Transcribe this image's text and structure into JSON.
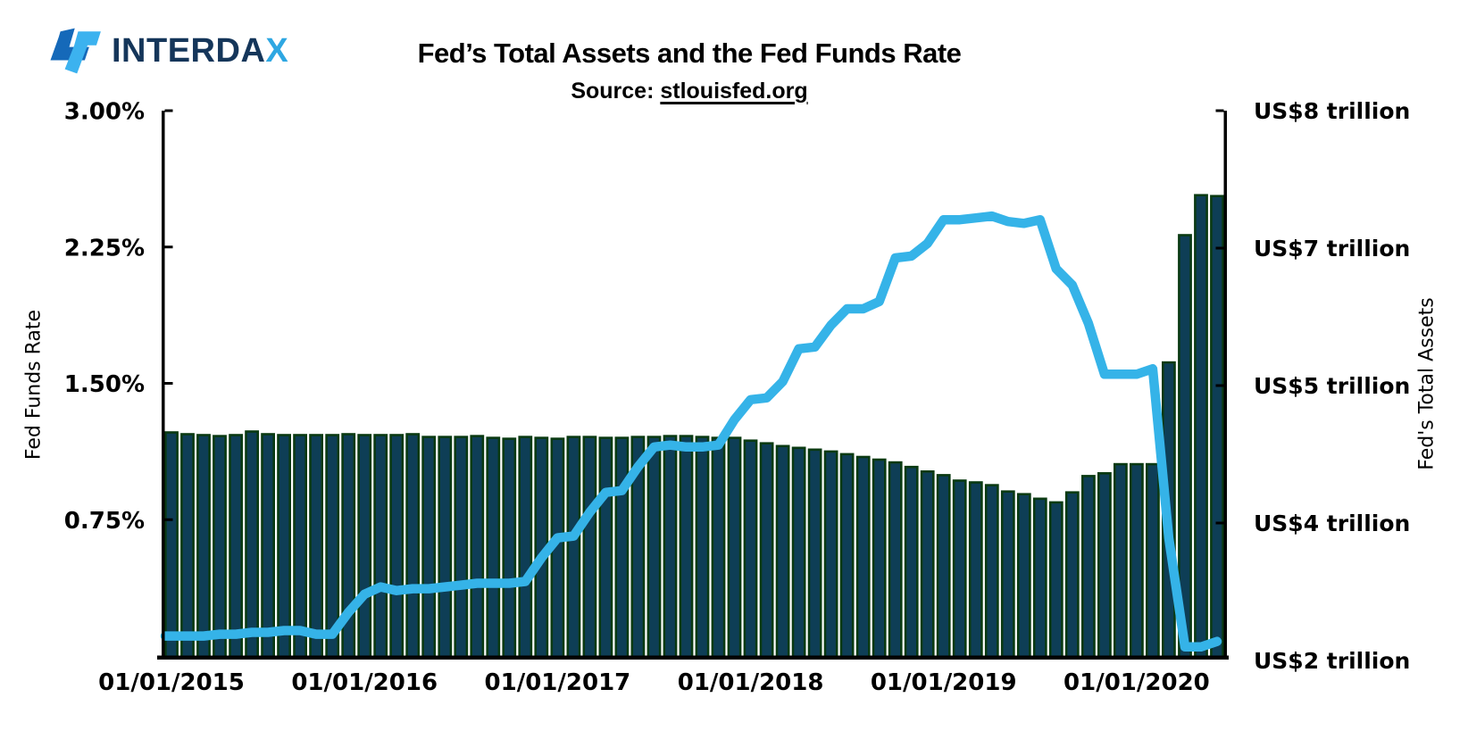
{
  "logo": {
    "brand_prefix": "INTERDA",
    "brand_suffix": "X"
  },
  "header": {
    "title": "Fed’s Total Assets and the Fed Funds Rate",
    "source_prefix": "Source: ",
    "source_link": "stlouisfed.org"
  },
  "chart_data": {
    "type": "bar+line",
    "title": "Fed’s Total Assets and the Fed Funds Rate",
    "source": "stlouisfed.org",
    "grid": false,
    "legend": "none",
    "x_axis": {
      "unit": "month",
      "tick_labels": [
        "01/01/2015",
        "01/01/2016",
        "01/01/2017",
        "01/01/2018",
        "01/01/2019",
        "01/01/2020"
      ],
      "categories": [
        "01/2015",
        "02/2015",
        "03/2015",
        "04/2015",
        "05/2015",
        "06/2015",
        "07/2015",
        "08/2015",
        "09/2015",
        "10/2015",
        "11/2015",
        "12/2015",
        "01/2016",
        "02/2016",
        "03/2016",
        "04/2016",
        "05/2016",
        "06/2016",
        "07/2016",
        "08/2016",
        "09/2016",
        "10/2016",
        "11/2016",
        "12/2016",
        "01/2017",
        "02/2017",
        "03/2017",
        "04/2017",
        "05/2017",
        "06/2017",
        "07/2017",
        "08/2017",
        "09/2017",
        "10/2017",
        "11/2017",
        "12/2017",
        "01/2018",
        "02/2018",
        "03/2018",
        "04/2018",
        "05/2018",
        "06/2018",
        "07/2018",
        "08/2018",
        "09/2018",
        "10/2018",
        "11/2018",
        "12/2018",
        "01/2019",
        "02/2019",
        "03/2019",
        "04/2019",
        "05/2019",
        "06/2019",
        "07/2019",
        "08/2019",
        "09/2019",
        "10/2019",
        "11/2019",
        "12/2019",
        "01/2020",
        "02/2020",
        "03/2020",
        "04/2020",
        "05/2020",
        "06/2020"
      ]
    },
    "left_axis": {
      "label": "Fed Funds Rate",
      "unit": "%",
      "range": [
        0,
        3
      ],
      "tick_labels": [
        "3.00%",
        "2.25%",
        "1.50%",
        "0.75%"
      ],
      "tick_values": [
        3.0,
        2.25,
        1.5,
        0.75
      ]
    },
    "right_axis": {
      "label": "Fed's Total Assets",
      "unit": "US$ trillion",
      "range": [
        2,
        8
      ],
      "tick_labels": [
        "US$8 trillion",
        "US$7 trillion",
        "US$5 trillion",
        "US$4 trillion",
        "US$2 trillion"
      ],
      "evenly_spaced_ticks": true
    },
    "series": [
      {
        "name": "Fed's Total Assets",
        "type": "bar",
        "axis": "right",
        "unit": "US$ trillion",
        "values": [
          4.46,
          4.44,
          4.43,
          4.42,
          4.43,
          4.47,
          4.44,
          4.43,
          4.43,
          4.43,
          4.43,
          4.44,
          4.43,
          4.43,
          4.43,
          4.44,
          4.41,
          4.41,
          4.41,
          4.42,
          4.4,
          4.39,
          4.41,
          4.4,
          4.39,
          4.41,
          4.41,
          4.4,
          4.4,
          4.41,
          4.41,
          4.42,
          4.42,
          4.41,
          4.4,
          4.4,
          4.37,
          4.34,
          4.31,
          4.29,
          4.27,
          4.25,
          4.22,
          4.19,
          4.16,
          4.13,
          4.08,
          4.03,
          3.99,
          3.93,
          3.91,
          3.88,
          3.81,
          3.78,
          3.73,
          3.69,
          3.8,
          3.98,
          4.01,
          4.11,
          4.11,
          4.11,
          5.23,
          6.63,
          7.07,
          7.06
        ]
      },
      {
        "name": "Fed Funds Rate",
        "type": "line",
        "axis": "left",
        "unit": "%",
        "values": [
          0.11,
          0.11,
          0.11,
          0.12,
          0.12,
          0.13,
          0.13,
          0.14,
          0.14,
          0.12,
          0.12,
          0.24,
          0.34,
          0.38,
          0.36,
          0.37,
          0.37,
          0.38,
          0.39,
          0.4,
          0.4,
          0.4,
          0.41,
          0.54,
          0.65,
          0.66,
          0.79,
          0.9,
          0.91,
          1.04,
          1.15,
          1.16,
          1.15,
          1.15,
          1.16,
          1.3,
          1.41,
          1.42,
          1.51,
          1.69,
          1.7,
          1.82,
          1.91,
          1.91,
          1.95,
          2.19,
          2.2,
          2.27,
          2.4,
          2.4,
          2.41,
          2.42,
          2.39,
          2.38,
          2.4,
          2.13,
          2.04,
          1.83,
          1.55,
          1.55,
          1.55,
          1.58,
          0.65,
          0.05,
          0.05,
          0.08
        ]
      }
    ],
    "colors": {
      "bar_fill": "#0e3e56",
      "bar_border": "#0a3a12",
      "line": "#35b3e8",
      "axis": "#000000",
      "logo_dark_blue": "#1569b9",
      "logo_light_blue": "#3cb2ef",
      "brand_navy": "#15365a",
      "brand_cyan": "#2ea7e2"
    }
  }
}
